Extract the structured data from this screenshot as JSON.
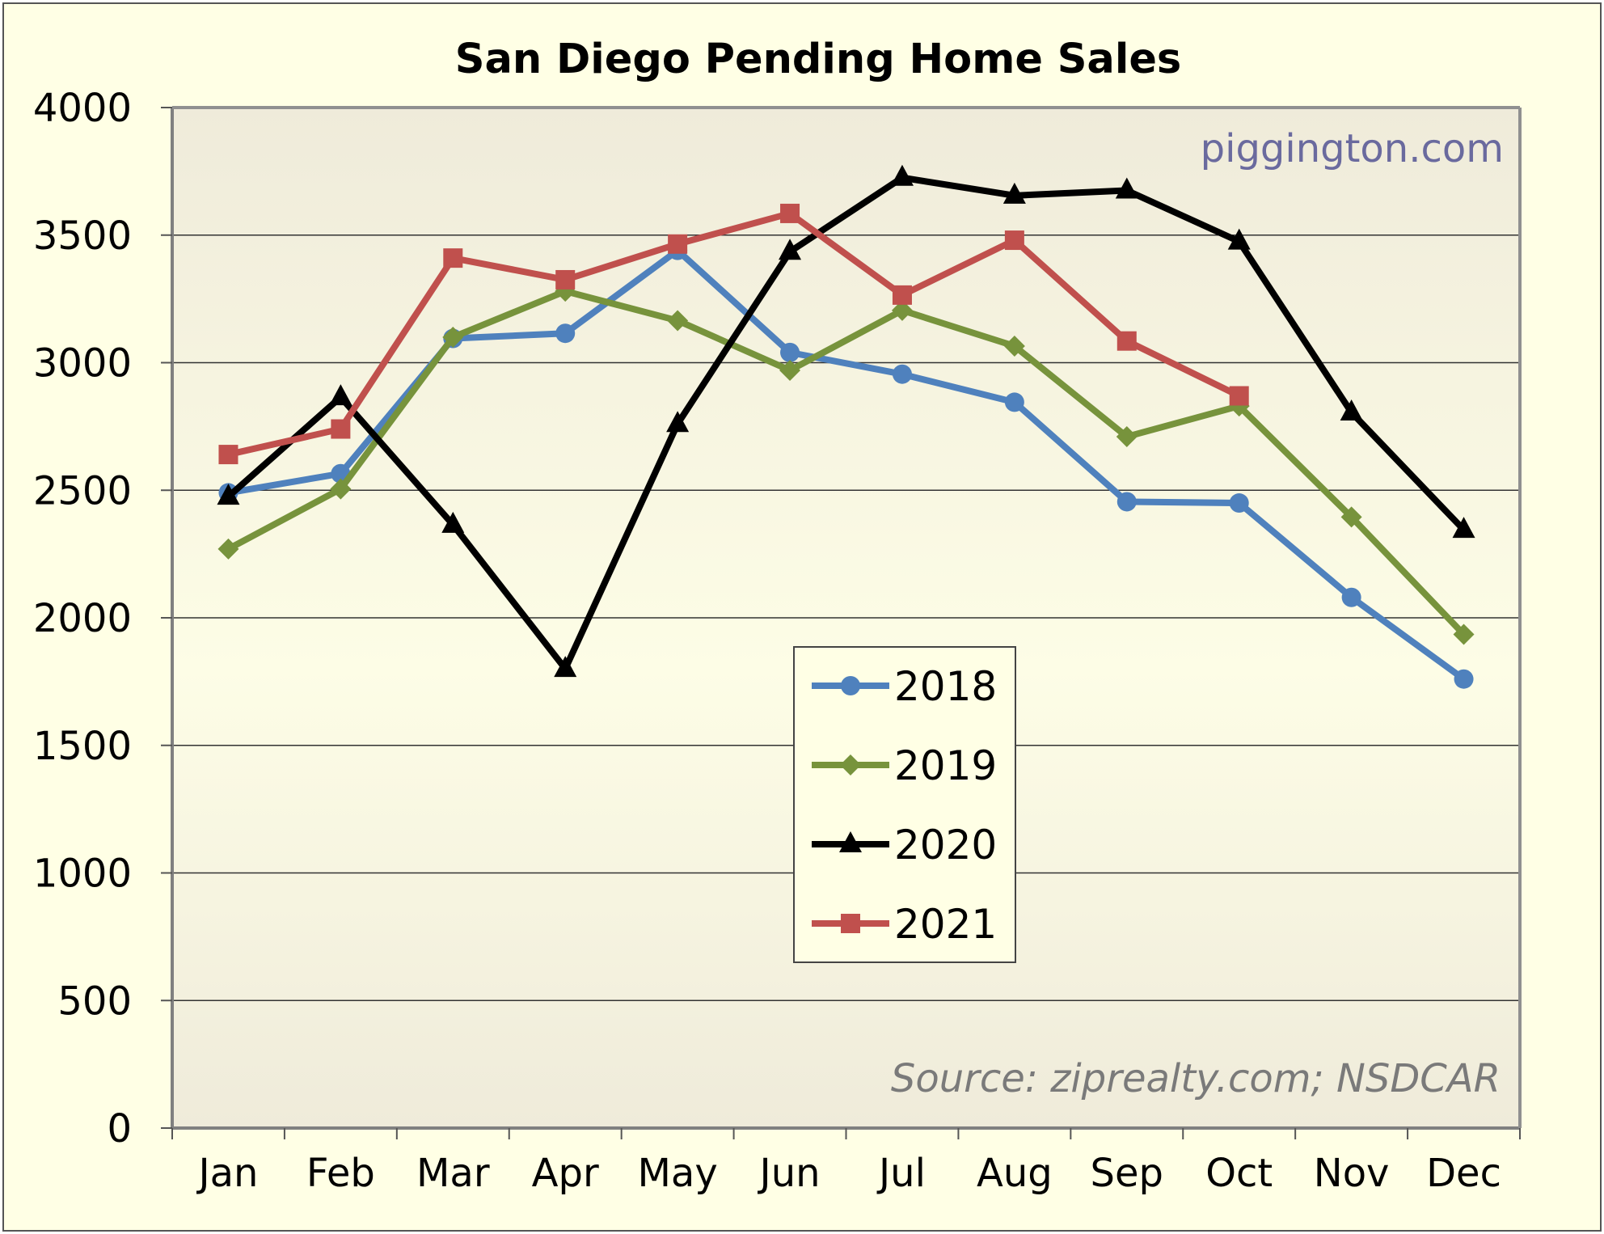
{
  "chart_data": {
    "type": "line",
    "title": "San Diego Pending Home Sales",
    "xlabel": "",
    "ylabel": "",
    "categories": [
      "Jan",
      "Feb",
      "Mar",
      "Apr",
      "May",
      "Jun",
      "Jul",
      "Aug",
      "Sep",
      "Oct",
      "Nov",
      "Dec"
    ],
    "ylim": [
      0,
      4000
    ],
    "yticks": [
      0,
      500,
      1000,
      1500,
      2000,
      2500,
      3000,
      3500,
      4000
    ],
    "grid": true,
    "legend_position": "center",
    "series": [
      {
        "name": "2018",
        "color": "#4f81bd",
        "marker": "circle",
        "values": [
          2490,
          2565,
          3095,
          3115,
          3440,
          3040,
          2955,
          2845,
          2455,
          2450,
          2080,
          1760
        ]
      },
      {
        "name": "2019",
        "color": "#77933c",
        "marker": "diamond",
        "values": [
          2270,
          2505,
          3100,
          3280,
          3165,
          2970,
          3205,
          3065,
          2710,
          2830,
          2395,
          1935
        ]
      },
      {
        "name": "2020",
        "color": "#000000",
        "marker": "triangle",
        "values": [
          2475,
          2865,
          2365,
          1800,
          2760,
          3435,
          3725,
          3655,
          3675,
          3475,
          2805,
          2345
        ]
      },
      {
        "name": "2021",
        "color": "#c0504d",
        "marker": "square",
        "values": [
          2640,
          2740,
          3410,
          3325,
          3465,
          3585,
          3265,
          3480,
          3085,
          2870
        ]
      }
    ],
    "annotations": [
      "piggington.com",
      "Source: ziprealty.com; NSDCAR"
    ]
  },
  "colors": {
    "page_background": "#ffffe5",
    "plot_background_top": "#efebdb",
    "plot_background_bottom": "#fffff0"
  }
}
